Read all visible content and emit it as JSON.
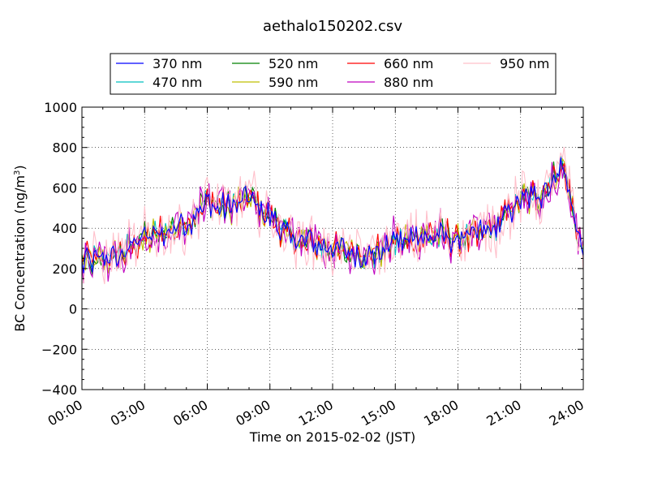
{
  "chart_data": {
    "type": "line",
    "title": "aethalo150202.csv",
    "xlabel": "Time on 2015-02-02 (JST)",
    "ylabel": "BC Concentration (ng/m³)",
    "ylabel_main": "BC Concentration (ng/m",
    "ylabel_sup": "3",
    "ylabel_end": ")",
    "xlim": [
      "00:00",
      "24:00"
    ],
    "ylim": [
      -400,
      1000
    ],
    "grid": true,
    "legend_position": "top",
    "x_ticks": [
      "00:00",
      "03:00",
      "06:00",
      "09:00",
      "12:00",
      "15:00",
      "18:00",
      "21:00",
      "24:00"
    ],
    "y_ticks": [
      -400,
      -200,
      0,
      200,
      400,
      600,
      800,
      1000
    ],
    "x_hours": [
      0,
      1,
      2,
      3,
      4,
      5,
      6,
      7,
      8,
      9,
      10,
      11,
      12,
      13,
      14,
      15,
      16,
      17,
      18,
      19,
      20,
      21,
      22,
      23,
      24
    ],
    "trend": [
      230,
      240,
      280,
      350,
      380,
      420,
      540,
      500,
      560,
      460,
      350,
      330,
      290,
      280,
      270,
      330,
      360,
      370,
      350,
      370,
      420,
      540,
      560,
      720,
      270
    ],
    "series": [
      {
        "name": "370 nm",
        "color": "#0000ff",
        "noise": 40
      },
      {
        "name": "470 nm",
        "color": "#00bfbf",
        "noise": 45
      },
      {
        "name": "520 nm",
        "color": "#008000",
        "noise": 50
      },
      {
        "name": "590 nm",
        "color": "#bfbf00",
        "noise": 55
      },
      {
        "name": "660 nm",
        "color": "#ff0000",
        "noise": 60
      },
      {
        "name": "880 nm",
        "color": "#bf00bf",
        "noise": 95
      },
      {
        "name": "950 nm",
        "color": "#ffc0cb",
        "noise": 120
      }
    ]
  }
}
